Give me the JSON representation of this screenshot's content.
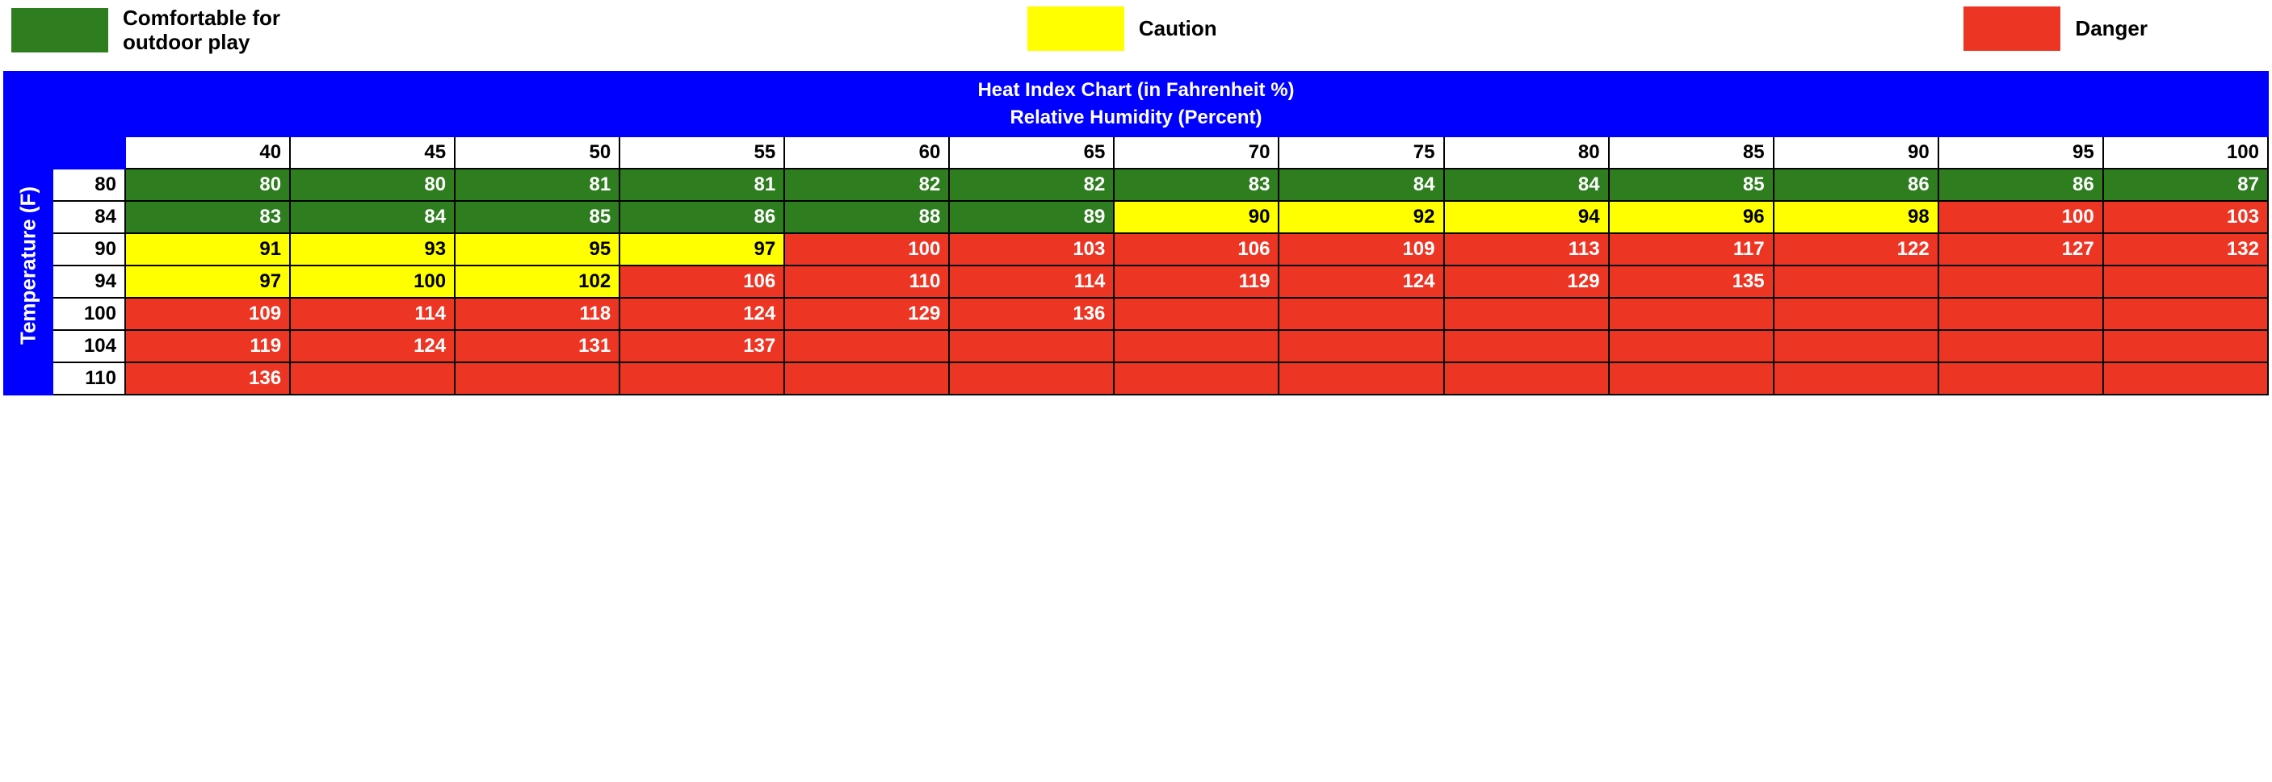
{
  "legend": {
    "items": [
      {
        "label": "Comfortable for\noutdoor play",
        "color": "#2e7d1f"
      },
      {
        "label": "Caution",
        "color": "#ffff00"
      },
      {
        "label": "Danger",
        "color": "#ed3524"
      }
    ]
  },
  "chart": {
    "type": "heatmap-table",
    "title": "Heat Index Chart (in Fahrenheit %)",
    "subtitle": "Relative Humidity (Percent)",
    "y_axis_label": "Temperature (F)",
    "frame_color": "#0000ff",
    "border_color": "#000000",
    "header_bg": "#ffffff",
    "header_fg": "#000000",
    "title_fg": "#ffffff",
    "font_family": "Arial",
    "title_fontsize": 40,
    "subtitle_fontsize": 24,
    "cell_fontsize": 24,
    "categories": {
      "comfortable": {
        "bg": "#2e7d1f",
        "fg": "#ffffff"
      },
      "caution": {
        "bg": "#ffff00",
        "fg": "#000000"
      },
      "danger": {
        "bg": "#ed3524",
        "fg": "#ffffff"
      }
    },
    "humidity": [
      40,
      45,
      50,
      55,
      60,
      65,
      70,
      75,
      80,
      85,
      90,
      95,
      100
    ],
    "temperature": [
      80,
      84,
      90,
      94,
      100,
      104,
      110
    ],
    "cells": [
      [
        {
          "v": 80,
          "c": "comfortable"
        },
        {
          "v": 80,
          "c": "comfortable"
        },
        {
          "v": 81,
          "c": "comfortable"
        },
        {
          "v": 81,
          "c": "comfortable"
        },
        {
          "v": 82,
          "c": "comfortable"
        },
        {
          "v": 82,
          "c": "comfortable"
        },
        {
          "v": 83,
          "c": "comfortable"
        },
        {
          "v": 84,
          "c": "comfortable"
        },
        {
          "v": 84,
          "c": "comfortable"
        },
        {
          "v": 85,
          "c": "comfortable"
        },
        {
          "v": 86,
          "c": "comfortable"
        },
        {
          "v": 86,
          "c": "comfortable"
        },
        {
          "v": 87,
          "c": "comfortable"
        }
      ],
      [
        {
          "v": 83,
          "c": "comfortable"
        },
        {
          "v": 84,
          "c": "comfortable"
        },
        {
          "v": 85,
          "c": "comfortable"
        },
        {
          "v": 86,
          "c": "comfortable"
        },
        {
          "v": 88,
          "c": "comfortable"
        },
        {
          "v": 89,
          "c": "comfortable"
        },
        {
          "v": 90,
          "c": "caution"
        },
        {
          "v": 92,
          "c": "caution"
        },
        {
          "v": 94,
          "c": "caution"
        },
        {
          "v": 96,
          "c": "caution"
        },
        {
          "v": 98,
          "c": "caution"
        },
        {
          "v": 100,
          "c": "danger"
        },
        {
          "v": 103,
          "c": "danger"
        }
      ],
      [
        {
          "v": 91,
          "c": "caution"
        },
        {
          "v": 93,
          "c": "caution"
        },
        {
          "v": 95,
          "c": "caution"
        },
        {
          "v": 97,
          "c": "caution"
        },
        {
          "v": 100,
          "c": "danger"
        },
        {
          "v": 103,
          "c": "danger"
        },
        {
          "v": 106,
          "c": "danger"
        },
        {
          "v": 109,
          "c": "danger"
        },
        {
          "v": 113,
          "c": "danger"
        },
        {
          "v": 117,
          "c": "danger"
        },
        {
          "v": 122,
          "c": "danger"
        },
        {
          "v": 127,
          "c": "danger"
        },
        {
          "v": 132,
          "c": "danger"
        }
      ],
      [
        {
          "v": 97,
          "c": "caution"
        },
        {
          "v": 100,
          "c": "caution"
        },
        {
          "v": 102,
          "c": "caution"
        },
        {
          "v": 106,
          "c": "danger"
        },
        {
          "v": 110,
          "c": "danger"
        },
        {
          "v": 114,
          "c": "danger"
        },
        {
          "v": 119,
          "c": "danger"
        },
        {
          "v": 124,
          "c": "danger"
        },
        {
          "v": 129,
          "c": "danger"
        },
        {
          "v": 135,
          "c": "danger"
        },
        {
          "v": "",
          "c": "danger"
        },
        {
          "v": "",
          "c": "danger"
        },
        {
          "v": "",
          "c": "danger"
        }
      ],
      [
        {
          "v": 109,
          "c": "danger"
        },
        {
          "v": 114,
          "c": "danger"
        },
        {
          "v": 118,
          "c": "danger"
        },
        {
          "v": 124,
          "c": "danger"
        },
        {
          "v": 129,
          "c": "danger"
        },
        {
          "v": 136,
          "c": "danger"
        },
        {
          "v": "",
          "c": "danger"
        },
        {
          "v": "",
          "c": "danger"
        },
        {
          "v": "",
          "c": "danger"
        },
        {
          "v": "",
          "c": "danger"
        },
        {
          "v": "",
          "c": "danger"
        },
        {
          "v": "",
          "c": "danger"
        },
        {
          "v": "",
          "c": "danger"
        }
      ],
      [
        {
          "v": 119,
          "c": "danger"
        },
        {
          "v": 124,
          "c": "danger"
        },
        {
          "v": 131,
          "c": "danger"
        },
        {
          "v": 137,
          "c": "danger"
        },
        {
          "v": "",
          "c": "danger"
        },
        {
          "v": "",
          "c": "danger"
        },
        {
          "v": "",
          "c": "danger"
        },
        {
          "v": "",
          "c": "danger"
        },
        {
          "v": "",
          "c": "danger"
        },
        {
          "v": "",
          "c": "danger"
        },
        {
          "v": "",
          "c": "danger"
        },
        {
          "v": "",
          "c": "danger"
        },
        {
          "v": "",
          "c": "danger"
        }
      ],
      [
        {
          "v": 136,
          "c": "danger"
        },
        {
          "v": "",
          "c": "danger"
        },
        {
          "v": "",
          "c": "danger"
        },
        {
          "v": "",
          "c": "danger"
        },
        {
          "v": "",
          "c": "danger"
        },
        {
          "v": "",
          "c": "danger"
        },
        {
          "v": "",
          "c": "danger"
        },
        {
          "v": "",
          "c": "danger"
        },
        {
          "v": "",
          "c": "danger"
        },
        {
          "v": "",
          "c": "danger"
        },
        {
          "v": "",
          "c": "danger"
        },
        {
          "v": "",
          "c": "danger"
        },
        {
          "v": "",
          "c": "danger"
        }
      ]
    ]
  }
}
